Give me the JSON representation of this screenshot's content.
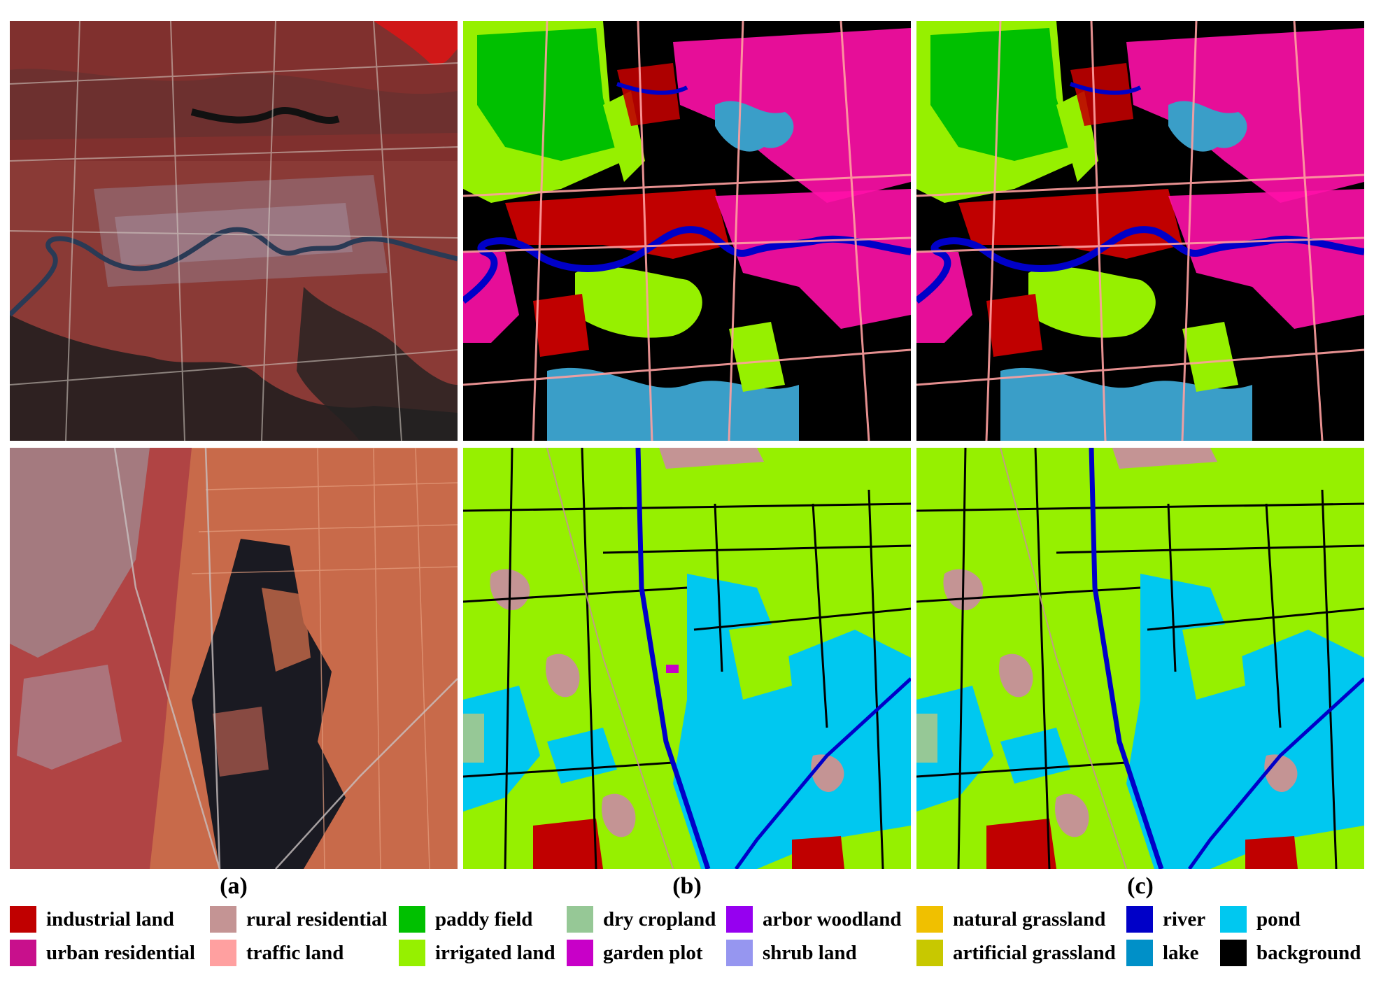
{
  "captions": [
    "(a)",
    "(b)",
    "(c)"
  ],
  "legend": [
    {
      "label": "industrial land",
      "color": "#c00000"
    },
    {
      "label": "urban residential",
      "color": "#c8108c"
    },
    {
      "label": "rural residential",
      "color": "#c49494"
    },
    {
      "label": "traffic land",
      "color": "#ffa0a0"
    },
    {
      "label": "paddy field",
      "color": "#00c000"
    },
    {
      "label": "irrigated land",
      "color": "#96f000"
    },
    {
      "label": "dry cropland",
      "color": "#96c896"
    },
    {
      "label": "garden plot",
      "color": "#c800c8"
    },
    {
      "label": "arbor woodland",
      "color": "#9600f0"
    },
    {
      "label": "shrub land",
      "color": "#9696f0"
    },
    {
      "label": "natural grassland",
      "color": "#f0c000"
    },
    {
      "label": "artificial grassland",
      "color": "#c8c800"
    },
    {
      "label": "river",
      "color": "#0000c8"
    },
    {
      "label": "lake",
      "color": "#0090c8"
    },
    {
      "label": "pond",
      "color": "#00c8f0"
    },
    {
      "label": "background",
      "color": "#000000"
    }
  ]
}
